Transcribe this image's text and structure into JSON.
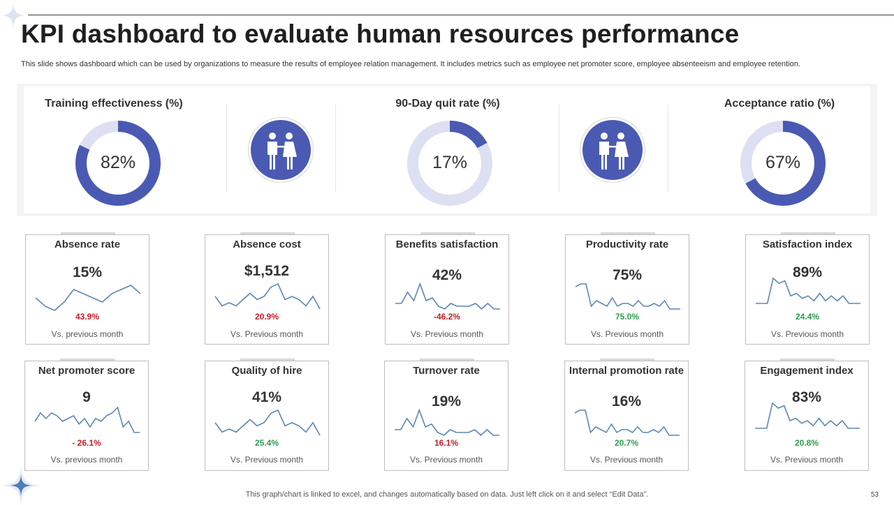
{
  "title": "KPI dashboard to evaluate human resources performance",
  "subtitle": "This slide shows dashboard which can be used by organizations to measure the results of employee relation management. It includes metrics such as employee net promoter score, employee absenteeism and employee retention.",
  "colors": {
    "accent": "#4a5ab3",
    "track": "#dde0f2",
    "positive": "#2e9c4f",
    "negative": "#c0202a",
    "spark": "#5b87b5"
  },
  "top_kpis": [
    {
      "label": "Training effectiveness  (%)",
      "value": "82%",
      "percent": 82
    },
    {
      "label": "90-Day quit rate (%)",
      "value": "17%",
      "percent": 17
    },
    {
      "label": "Acceptance ratio (%)",
      "value": "67%",
      "percent": 67
    }
  ],
  "icons": [
    "people-couple-icon",
    "people-couple-icon"
  ],
  "cards": [
    {
      "title": "Absence rate",
      "value": "15%",
      "delta": "43.9%",
      "trend": "negative",
      "footer": "Vs. previous month",
      "spark": [
        5,
        3,
        2,
        4,
        7,
        6,
        5,
        4,
        6,
        7,
        8,
        6
      ]
    },
    {
      "title": "Absence cost",
      "value": "$1,512",
      "delta": "20.9%",
      "trend": "negative",
      "footer": "Vs. Previous month",
      "spark": [
        6,
        3,
        4,
        3,
        5,
        7,
        5,
        6,
        9,
        10,
        5,
        6,
        5,
        3,
        6,
        2
      ]
    },
    {
      "title": "Benefits satisfaction",
      "value": "42%",
      "delta": "-46.2%",
      "trend": "negative",
      "footer": "Vs. Previous month",
      "spark": [
        4,
        4,
        8,
        5,
        11,
        5,
        6,
        3,
        2,
        4,
        3,
        3,
        3,
        4,
        2,
        4,
        2,
        2
      ]
    },
    {
      "title": "Productivity rate",
      "value": "75%",
      "delta": "75.0%",
      "trend": "positive",
      "footer": "Vs. Previous month",
      "spark": [
        8,
        9,
        9,
        1,
        3,
        2,
        1,
        4,
        1,
        2,
        2,
        1,
        3,
        1,
        1,
        2,
        1,
        3,
        0,
        0,
        0
      ]
    },
    {
      "title": "Satisfaction index",
      "value": "89%",
      "delta": "24.4%",
      "trend": "positive",
      "footer": "Vs. Previous month",
      "spark": [
        0,
        0,
        0,
        10,
        8,
        9,
        3,
        4,
        2,
        3,
        1,
        4,
        1,
        3,
        1,
        3,
        0,
        0,
        0
      ]
    },
    {
      "title": "Net promoter score",
      "value": "9",
      "delta": "- 26.1%",
      "trend": "negative",
      "footer": "Vs. previous month",
      "spark": [
        4,
        7,
        5,
        7,
        6,
        4,
        5,
        6,
        3,
        5,
        2,
        5,
        4,
        6,
        7,
        9,
        2,
        4,
        0,
        0
      ]
    },
    {
      "title": "Quality of hire",
      "value": "41%",
      "delta": "25.4%",
      "trend": "positive",
      "footer": "Vs. Previous month",
      "spark": [
        6,
        3,
        4,
        3,
        5,
        7,
        5,
        6,
        9,
        10,
        5,
        6,
        5,
        3,
        6,
        2
      ]
    },
    {
      "title": "Turnover rate",
      "value": "19%",
      "delta": "16.1%",
      "trend": "negative",
      "footer": "Vs. Previous month",
      "spark": [
        4,
        4,
        8,
        5,
        11,
        5,
        6,
        3,
        2,
        4,
        3,
        3,
        3,
        4,
        2,
        4,
        2,
        2
      ]
    },
    {
      "title": "Internal promotion rate",
      "value": "16%",
      "delta": "20.7%",
      "trend": "positive",
      "footer": "Vs. Previous month",
      "spark": [
        8,
        9,
        9,
        1,
        3,
        2,
        1,
        4,
        1,
        2,
        2,
        1,
        3,
        1,
        1,
        2,
        1,
        3,
        0,
        0,
        0
      ]
    },
    {
      "title": "Engagement index",
      "value": "83%",
      "delta": "20.8%",
      "trend": "positive",
      "footer": "Vs. Previous month",
      "spark": [
        0,
        0,
        0,
        10,
        8,
        9,
        3,
        4,
        2,
        3,
        1,
        4,
        1,
        3,
        1,
        3,
        0,
        0,
        0
      ]
    }
  ],
  "footnote": "This graph/chart is linked to excel,  and changes automatically based on data. Just left click on it and select “Edit Data”.",
  "page_number": "53"
}
